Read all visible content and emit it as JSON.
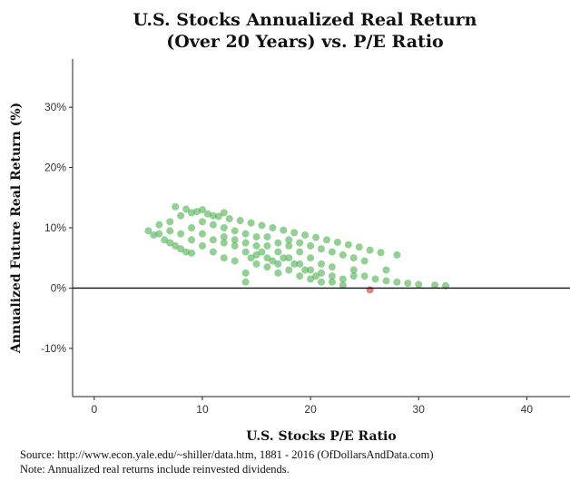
{
  "chart_data": {
    "type": "scatter",
    "title": [
      "U.S. Stocks Annualized Real Return",
      "(Over 20 Years) vs. P/E Ratio"
    ],
    "xlabel": "U.S. Stocks P/E Ratio",
    "ylabel": "Annualized Future Real Return (%)",
    "xlim": [
      -2,
      44
    ],
    "ylim": [
      -18,
      38
    ],
    "xticks": [
      0,
      10,
      20,
      30,
      40
    ],
    "yticks": [
      -10,
      0,
      10,
      20,
      30
    ],
    "ytick_labels": [
      "-10%",
      "0%",
      "10%",
      "20%",
      "30%"
    ],
    "grid": false,
    "colors": {
      "positive": "#4caf50",
      "negative": "#c0392b"
    },
    "hline": 0,
    "points": [
      [
        7.5,
        13.5
      ],
      [
        8.5,
        13.1
      ],
      [
        9.5,
        12.7
      ],
      [
        10.5,
        12.3
      ],
      [
        11.5,
        11.9
      ],
      [
        12.5,
        11.5
      ],
      [
        13.5,
        11.2
      ],
      [
        14.5,
        10.8
      ],
      [
        15.5,
        10.4
      ],
      [
        16.5,
        10.0
      ],
      [
        17.5,
        9.6
      ],
      [
        18.5,
        9.2
      ],
      [
        19.5,
        8.8
      ],
      [
        20.5,
        8.4
      ],
      [
        21.5,
        8.0
      ],
      [
        22.5,
        7.6
      ],
      [
        23.5,
        7.2
      ],
      [
        24.5,
        6.8
      ],
      [
        25.5,
        6.3
      ],
      [
        26.5,
        5.9
      ],
      [
        28,
        5.5
      ],
      [
        5,
        9.5
      ],
      [
        5.5,
        8.8
      ],
      [
        6,
        9
      ],
      [
        6.5,
        8
      ],
      [
        7,
        7.5
      ],
      [
        7.5,
        7
      ],
      [
        8,
        6.5
      ],
      [
        8.5,
        6
      ],
      [
        9,
        5.8
      ],
      [
        6,
        10.5
      ],
      [
        7,
        11
      ],
      [
        8,
        12
      ],
      [
        9,
        12.5
      ],
      [
        10,
        13
      ],
      [
        9,
        10
      ],
      [
        10,
        9
      ],
      [
        11,
        8
      ],
      [
        12,
        7.5
      ],
      [
        13,
        7
      ],
      [
        10,
        11
      ],
      [
        11,
        10.5
      ],
      [
        12,
        10
      ],
      [
        13,
        9.5
      ],
      [
        14,
        9
      ],
      [
        15,
        8.5
      ],
      [
        11,
        12
      ],
      [
        12,
        12.5
      ],
      [
        7,
        9.5
      ],
      [
        8,
        9
      ],
      [
        9,
        8
      ],
      [
        10,
        7
      ],
      [
        11,
        6
      ],
      [
        12,
        8.5
      ],
      [
        13,
        8
      ],
      [
        14,
        7.5
      ],
      [
        14,
        6
      ],
      [
        15,
        5.5
      ],
      [
        15,
        4
      ],
      [
        16,
        7
      ],
      [
        16,
        5
      ],
      [
        16,
        3.5
      ],
      [
        17,
        6
      ],
      [
        17,
        4
      ],
      [
        17,
        2.5
      ],
      [
        18,
        5
      ],
      [
        18,
        3
      ],
      [
        18,
        7
      ],
      [
        19,
        4
      ],
      [
        19,
        2
      ],
      [
        19,
        6
      ],
      [
        20,
        3
      ],
      [
        20,
        1.5
      ],
      [
        20,
        5
      ],
      [
        21,
        2.5
      ],
      [
        21,
        4
      ],
      [
        21,
        1
      ],
      [
        22,
        2
      ],
      [
        22,
        3.5
      ],
      [
        22,
        1
      ],
      [
        23,
        1.5
      ],
      [
        23,
        0.5
      ],
      [
        24,
        2
      ],
      [
        24,
        3
      ],
      [
        25,
        2
      ],
      [
        14,
        1
      ],
      [
        14,
        2.5
      ],
      [
        13,
        4.5
      ],
      [
        12,
        5
      ],
      [
        15,
        7
      ],
      [
        16,
        8.5
      ],
      [
        18,
        8
      ],
      [
        19,
        7.5
      ],
      [
        20,
        7
      ],
      [
        21,
        6.5
      ],
      [
        22,
        6
      ],
      [
        23,
        5.5
      ],
      [
        24,
        5
      ],
      [
        25,
        4.5
      ],
      [
        15.5,
        6
      ],
      [
        16.5,
        4.5
      ],
      [
        17.5,
        5
      ],
      [
        18.5,
        4
      ],
      [
        19.5,
        3
      ],
      [
        20.5,
        2
      ],
      [
        17,
        7.5
      ],
      [
        14.5,
        5
      ],
      [
        26,
        1.5
      ],
      [
        27,
        1.2
      ],
      [
        28,
        1
      ],
      [
        29,
        0.8
      ],
      [
        30,
        0.6
      ],
      [
        31.5,
        0.5
      ],
      [
        32.5,
        0.4
      ],
      [
        27,
        3
      ],
      [
        25.5,
        -0.3
      ]
    ]
  },
  "source": "Source:  http://www.econ.yale.edu/~shiller/data.htm, 1881 - 2016 (OfDollarsAndData.com)",
  "note": "Note:  Annualized real returns include reinvested dividends."
}
